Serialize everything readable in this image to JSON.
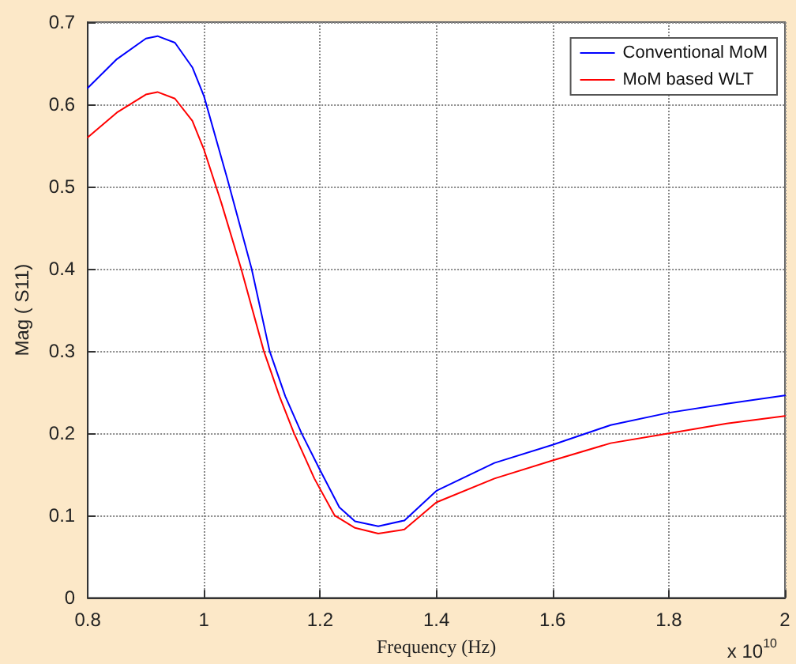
{
  "chart_data": {
    "type": "line",
    "xlabel": "Frequency (Hz)",
    "ylabel": "Mag ( S11)",
    "annotations": [
      "x 10$^{10}$"
    ],
    "xlim": [
      0.8,
      2
    ],
    "xticks": [
      0.8,
      1,
      1.2,
      1.4,
      1.6,
      1.8,
      2
    ],
    "ylim": [
      0,
      0.7
    ],
    "yticks": [
      0,
      0.1,
      0.2,
      0.3,
      0.4,
      0.5,
      0.6,
      0.7
    ],
    "grid": true,
    "legend": "top right",
    "marker": "none",
    "line_style": "solid",
    "series": [
      {
        "name": "Conventional MoM",
        "color": "#0000ff",
        "x": [
          0.8,
          0.85,
          0.9,
          0.92,
          0.95,
          0.98,
          1.0,
          1.04,
          1.082,
          1.113,
          1.14,
          1.168,
          1.2,
          1.233,
          1.26,
          1.3,
          1.345,
          1.4,
          1.5,
          1.6,
          1.7,
          1.8,
          1.9,
          2.0
        ],
        "values": [
          0.62,
          0.655,
          0.68,
          0.683,
          0.675,
          0.645,
          0.61,
          0.51,
          0.4,
          0.3,
          0.245,
          0.2,
          0.155,
          0.11,
          0.093,
          0.087,
          0.094,
          0.13,
          0.164,
          0.186,
          0.21,
          0.225,
          0.236,
          0.246
        ]
      },
      {
        "name": "MoM based WLT",
        "color": "#ff0000",
        "x": [
          0.8,
          0.85,
          0.9,
          0.92,
          0.95,
          0.98,
          1.0,
          1.03,
          1.064,
          1.103,
          1.13,
          1.155,
          1.19,
          1.225,
          1.26,
          1.3,
          1.345,
          1.4,
          1.5,
          1.6,
          1.7,
          1.8,
          1.9,
          2.0
        ],
        "values": [
          0.56,
          0.59,
          0.612,
          0.615,
          0.607,
          0.58,
          0.545,
          0.48,
          0.4,
          0.3,
          0.245,
          0.2,
          0.145,
          0.1,
          0.085,
          0.078,
          0.083,
          0.116,
          0.145,
          0.167,
          0.188,
          0.2,
          0.212,
          0.221
        ]
      }
    ]
  }
}
